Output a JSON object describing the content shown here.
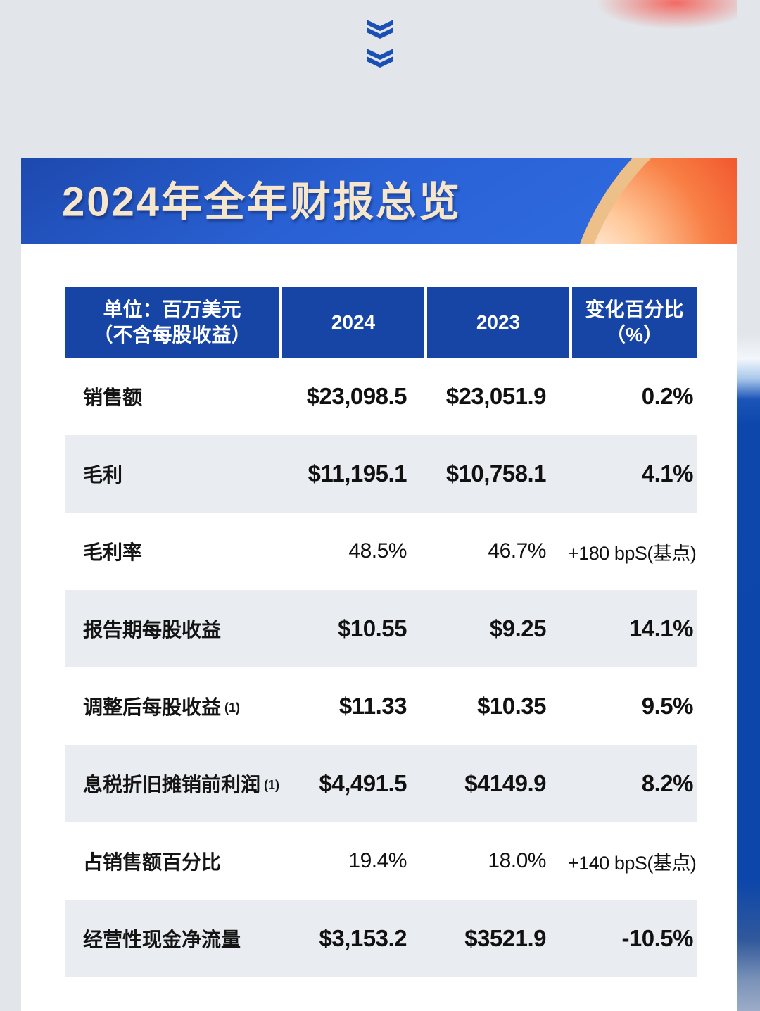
{
  "page": {
    "background_color": "#e2e5e9",
    "scroll_hint_icon": "double-chevron-down",
    "chevron_color": "#1a4fb6"
  },
  "banner": {
    "title": "2024年全年财报总览",
    "title_color": "#f6e6cb",
    "gradient_start": "#1d49ae",
    "gradient_end": "#2e6ade",
    "circle_color": "#ee4523",
    "circle_rim_color": "#edc089"
  },
  "table": {
    "header_color": "#1745a6",
    "alt_row_color": "#e9ecf0",
    "header": {
      "unit_line1": "单位：百万美元",
      "unit_line2": "（不含每股收益）",
      "col_2024": "2024",
      "col_2023": "2023",
      "change_line1": "变化百分比",
      "change_line2": "（%）"
    },
    "rows": [
      {
        "label": "销售额",
        "note": "",
        "v2024": "$23,098.5",
        "v2023": "$23,051.9",
        "change": "0.2%",
        "emphasis": true
      },
      {
        "label": "毛利",
        "note": "",
        "v2024": "$11,195.1",
        "v2023": "$10,758.1",
        "change": "4.1%",
        "emphasis": true
      },
      {
        "label": "毛利率",
        "note": "",
        "v2024": "48.5%",
        "v2023": "46.7%",
        "change": "+180 bpS(基点)",
        "emphasis": false
      },
      {
        "label": "报告期每股收益",
        "note": "",
        "v2024": "$10.55",
        "v2023": "$9.25",
        "change": "14.1%",
        "emphasis": true
      },
      {
        "label": "调整后每股收益",
        "note": "(1)",
        "v2024": "$11.33",
        "v2023": "$10.35",
        "change": "9.5%",
        "emphasis": true
      },
      {
        "label": "息税折旧摊销前利润",
        "note": "(1)",
        "v2024": "$4,491.5",
        "v2023": "$4149.9",
        "change": "8.2%",
        "emphasis": true
      },
      {
        "label": "占销售额百分比",
        "note": "",
        "v2024": "19.4%",
        "v2023": "18.0%",
        "change": "+140 bpS(基点)",
        "emphasis": false
      },
      {
        "label": "经营性现金净流量",
        "note": "",
        "v2024": "$3,153.2",
        "v2023": "$3521.9",
        "change": "-10.5%",
        "emphasis": true
      }
    ]
  }
}
